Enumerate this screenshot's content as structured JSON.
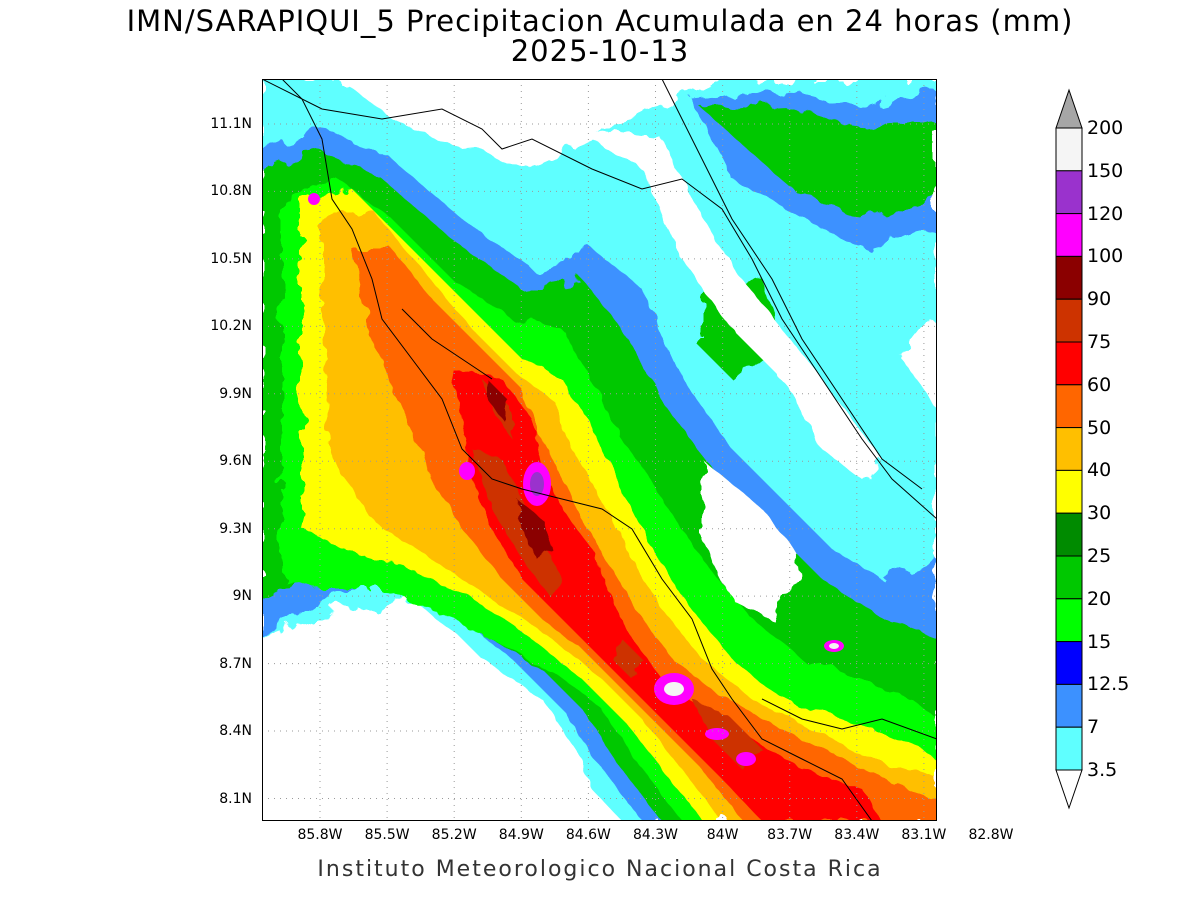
{
  "title": {
    "line1": "IMN/SARAPIQUI_5 Precipitacion Acumulada en 24 horas (mm)",
    "line2": "2025-10-13"
  },
  "footer": "Instituto Meteorologico Nacional Costa Rica",
  "map": {
    "lat_labels": [
      "11.1N",
      "10.8N",
      "10.5N",
      "10.2N",
      "9.9N",
      "9.6N",
      "9.3N",
      "9N",
      "8.7N",
      "8.4N",
      "8.1N"
    ],
    "lon_labels": [
      "85.8W",
      "85.5W",
      "85.2W",
      "84.9W",
      "84.6W",
      "84.3W",
      "84W",
      "83.7W",
      "83.4W",
      "83.1W",
      "82.8W"
    ],
    "lat_range": [
      8.0,
      11.3
    ],
    "lon_range": [
      -86.0,
      -83.0
    ],
    "grid": "dotted"
  },
  "colorbar": {
    "labels": [
      "200",
      "150",
      "120",
      "100",
      "90",
      "75",
      "60",
      "50",
      "40",
      "30",
      "25",
      "20",
      "15",
      "12.5",
      "7",
      "3.5"
    ],
    "colors": [
      "#a6a6a6",
      "#f5f5f5",
      "#9a32cd",
      "#ff00ff",
      "#8b0000",
      "#cd3300",
      "#ff0000",
      "#ff6600",
      "#ffbf00",
      "#ffff00",
      "#008b00",
      "#00c800",
      "#00ff00",
      "#0000ff",
      "#3c91ff",
      "#5fffff",
      "#ffffff"
    ],
    "unit": "mm"
  }
}
